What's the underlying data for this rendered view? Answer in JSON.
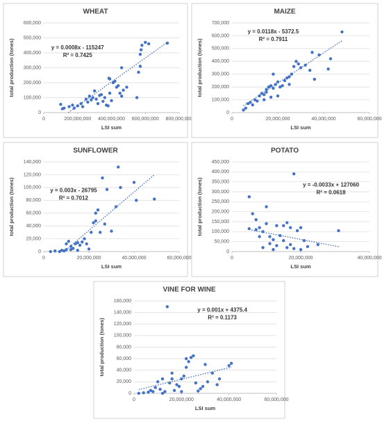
{
  "chart_data": [
    {
      "type": "scatter",
      "title": "WHEAT",
      "x_label": "LSI sum",
      "y_label": "total production (tones)",
      "color": "#4472c4",
      "grid": true,
      "annotations": [
        "y = 0.0008x - 115247",
        "R² = 0.7425"
      ],
      "xlim": [
        0,
        800000000
      ],
      "xticks": [
        0,
        {
          "value": 200000000,
          "label": "200,000,000"
        },
        {
          "value": 400000000,
          "label": "400,000,000"
        },
        {
          "value": 600000000,
          "label": "600,000,000"
        },
        {
          "value": 800000000,
          "label": "800,000,000"
        }
      ],
      "ylim": [
        0,
        600000
      ],
      "yticks": [
        0,
        {
          "value": 100000,
          "label": "100,000"
        },
        {
          "value": 200000,
          "label": "200,000"
        },
        {
          "value": 300000,
          "label": "300,000"
        },
        {
          "value": 400000,
          "label": "400,000"
        },
        {
          "value": 500000,
          "label": "500,000"
        },
        {
          "value": 600000,
          "label": "600,000"
        }
      ],
      "x": [
        100000000,
        110000000,
        120000000,
        150000000,
        170000000,
        180000000,
        200000000,
        220000000,
        230000000,
        250000000,
        260000000,
        270000000,
        280000000,
        290000000,
        300000000,
        310000000,
        320000000,
        330000000,
        340000000,
        350000000,
        360000000,
        370000000,
        380000000,
        390000000,
        400000000,
        410000000,
        420000000,
        430000000,
        440000000,
        450000000,
        460000000,
        460000000,
        470000000,
        490000000,
        550000000,
        560000000,
        570000000,
        570000000,
        575000000,
        580000000,
        600000000,
        620000000,
        730000000,
        390000000,
        385000000
      ],
      "values": [
        55000,
        25000,
        30000,
        40000,
        50000,
        30000,
        45000,
        60000,
        40000,
        90000,
        70000,
        110000,
        85000,
        100000,
        145000,
        90000,
        60000,
        115000,
        120000,
        75000,
        100000,
        50000,
        45000,
        130000,
        80000,
        200000,
        210000,
        170000,
        180000,
        130000,
        110000,
        300000,
        150000,
        170000,
        100000,
        270000,
        310000,
        390000,
        420000,
        450000,
        470000,
        460000,
        465000,
        225000,
        230000
      ],
      "trendline": {
        "x": [
          145000000,
          730000000
        ],
        "y": [
          0,
          470000
        ]
      }
    },
    {
      "type": "scatter",
      "title": "MAIZE",
      "x_label": "LSI sum",
      "y_label": "total production (tones)",
      "color": "#4472c4",
      "grid": true,
      "annotations": [
        "y = 0.0118x - 5372.5",
        "R² = 0.7911"
      ],
      "xlim": [
        0,
        60000000
      ],
      "xticks": [
        0,
        {
          "value": 20000000,
          "label": "20,000,000"
        },
        {
          "value": 40000000,
          "label": "40,000,000"
        },
        {
          "value": 60000000,
          "label": "60,000,000"
        }
      ],
      "ylim": [
        0,
        700000
      ],
      "yticks": [
        0,
        {
          "value": 100000,
          "label": "100,000"
        },
        {
          "value": 200000,
          "label": "200,000"
        },
        {
          "value": 300000,
          "label": "300,000"
        },
        {
          "value": 400000,
          "label": "400,000"
        },
        {
          "value": 500000,
          "label": "500,000"
        },
        {
          "value": 600000,
          "label": "600,000"
        },
        {
          "value": 700000,
          "label": "700,000"
        }
      ],
      "x": [
        5000000,
        6000000,
        7000000,
        8000000,
        9000000,
        10000000,
        11000000,
        12000000,
        13000000,
        14000000,
        15000000,
        16000000,
        17000000,
        18000000,
        18000000,
        19000000,
        20000000,
        20000000,
        21000000,
        22000000,
        23000000,
        24000000,
        25000000,
        25000000,
        26000000,
        27000000,
        28000000,
        29000000,
        30000000,
        32000000,
        34000000,
        35000000,
        36000000,
        38000000,
        42000000,
        43000000,
        48000000,
        17000000,
        15000000,
        14000000
      ],
      "values": [
        20000,
        35000,
        70000,
        80000,
        60000,
        100000,
        90000,
        130000,
        150000,
        100000,
        180000,
        200000,
        210000,
        300000,
        190000,
        220000,
        130000,
        240000,
        200000,
        210000,
        250000,
        270000,
        280000,
        220000,
        300000,
        360000,
        400000,
        380000,
        350000,
        370000,
        330000,
        470000,
        260000,
        450000,
        340000,
        420000,
        630000,
        120000,
        160000,
        140000
      ],
      "trendline": {
        "x": [
          5000000,
          48000000
        ],
        "y": [
          53600,
          561000
        ]
      }
    },
    {
      "type": "scatter",
      "title": "SUNFLOWER",
      "x_label": "LSI sum",
      "y_label": "total production (tones)",
      "color": "#4472c4",
      "grid": true,
      "annotations": [
        "y = 0.003x - 26795",
        "R² = 0.7012"
      ],
      "xlim": [
        0,
        60000000
      ],
      "xticks": [
        0,
        {
          "value": 20000000,
          "label": "20,000,000"
        },
        {
          "value": 40000000,
          "label": "40,000,000"
        },
        {
          "value": 60000000,
          "label": "60,000,000"
        }
      ],
      "ylim": [
        0,
        140000
      ],
      "yticks": [
        0,
        {
          "value": 20000,
          "label": "20,000"
        },
        {
          "value": 40000,
          "label": "40,000"
        },
        {
          "value": 60000,
          "label": "60,000"
        },
        {
          "value": 80000,
          "label": "80,000"
        },
        {
          "value": 100000,
          "label": "100,000"
        },
        {
          "value": 120000,
          "label": "120,000"
        },
        {
          "value": 140000,
          "label": "140,000"
        }
      ],
      "x": [
        3000000,
        5000000,
        7000000,
        8000000,
        9000000,
        10000000,
        10000000,
        11000000,
        12000000,
        12000000,
        13000000,
        14000000,
        15000000,
        16000000,
        17000000,
        18000000,
        19000000,
        20000000,
        21000000,
        22000000,
        23000000,
        23000000,
        24000000,
        25000000,
        26000000,
        27000000,
        28000000,
        30000000,
        32000000,
        33000000,
        34000000,
        40000000,
        41000000,
        49000000,
        15000000
      ],
      "values": [
        0,
        1000,
        0,
        2000,
        1000,
        3000,
        12000,
        16000,
        8000,
        3000,
        5000,
        12000,
        14000,
        10000,
        15000,
        20000,
        12000,
        4000,
        30000,
        45000,
        48000,
        60000,
        65000,
        30000,
        115000,
        43000,
        97000,
        32000,
        70000,
        132000,
        100000,
        108000,
        80000,
        82000,
        2000
      ],
      "trendline": {
        "x": [
          9000000,
          49000000
        ],
        "y": [
          0,
          120000
        ]
      }
    },
    {
      "type": "scatter",
      "title": "POTATO",
      "x_label": "LSI sum",
      "y_label": "total production (tones)",
      "color": "#4472c4",
      "grid": true,
      "annotations": [
        "y = -0.0033x + 127060",
        "R² = 0.0618"
      ],
      "xlim": [
        0,
        40000000
      ],
      "xticks": [
        0,
        {
          "value": 20000000,
          "label": "20,000,000"
        },
        {
          "value": 40000000,
          "label": "40,000,000"
        }
      ],
      "ylim": [
        0,
        450000
      ],
      "yticks": [
        0,
        {
          "value": 50000,
          "label": "50,000"
        },
        {
          "value": 100000,
          "label": "100,000"
        },
        {
          "value": 150000,
          "label": "150,000"
        },
        {
          "value": 200000,
          "label": "200,000"
        },
        {
          "value": 250000,
          "label": "250,000"
        },
        {
          "value": 300000,
          "label": "300,000"
        },
        {
          "value": 350000,
          "label": "350,000"
        },
        {
          "value": 400000,
          "label": "400,000"
        },
        {
          "value": 450000,
          "label": "450,000"
        }
      ],
      "x": [
        5000000,
        5000000,
        6000000,
        7000000,
        7000000,
        8000000,
        8000000,
        9000000,
        10000000,
        10000000,
        11000000,
        11000000,
        12000000,
        12000000,
        13000000,
        14000000,
        15000000,
        15000000,
        16000000,
        16000000,
        17000000,
        17000000,
        18000000,
        18000000,
        19000000,
        20000000,
        20000000,
        21000000,
        22000000,
        25000000,
        31000000,
        13000000,
        9000000
      ],
      "values": [
        115000,
        275000,
        190000,
        160000,
        110000,
        120000,
        75000,
        100000,
        225000,
        140000,
        75000,
        40000,
        10000,
        60000,
        30000,
        80000,
        55000,
        130000,
        145000,
        20000,
        35000,
        120000,
        390000,
        15000,
        105000,
        10000,
        120000,
        55000,
        25000,
        35000,
        105000,
        130000,
        20000
      ],
      "trendline": {
        "x": [
          5000000,
          31000000
        ],
        "y": [
          110500,
          24700
        ]
      }
    },
    {
      "type": "scatter",
      "title": "VINE FOR WINE",
      "x_label": "LSI sum",
      "y_label": "total production (tones)",
      "color": "#4472c4",
      "grid": true,
      "annotations": [
        "y = 0.001x + 4375.4",
        "R² = 0.1173"
      ],
      "xlim": [
        0,
        60000000
      ],
      "xticks": [
        0,
        {
          "value": 20000000,
          "label": "20,000,000"
        },
        {
          "value": 40000000,
          "label": "40,000,000"
        },
        {
          "value": 60000000,
          "label": "60,000,000"
        }
      ],
      "ylim": [
        0,
        160000
      ],
      "yticks": [
        0,
        {
          "value": 20000,
          "label": "20,000"
        },
        {
          "value": 40000,
          "label": "40,000"
        },
        {
          "value": 60000,
          "label": "60,000"
        },
        {
          "value": 80000,
          "label": "80,000"
        },
        {
          "value": 100000,
          "label": "100,000"
        },
        {
          "value": 120000,
          "label": "120,000"
        },
        {
          "value": 140000,
          "label": "140,000"
        },
        {
          "value": 160000,
          "label": "160,000"
        }
      ],
      "x": [
        2000000,
        4000000,
        6000000,
        7000000,
        8000000,
        9000000,
        10000000,
        11000000,
        12000000,
        13000000,
        14000000,
        15000000,
        16000000,
        16000000,
        17000000,
        18000000,
        19000000,
        20000000,
        21000000,
        22000000,
        22000000,
        23000000,
        24000000,
        25000000,
        26000000,
        27000000,
        28000000,
        29000000,
        30000000,
        31000000,
        33000000,
        35000000,
        36000000,
        41000000,
        40000000,
        12000000,
        20000000
      ],
      "values": [
        0,
        1000,
        2000,
        5000,
        3000,
        10000,
        20000,
        7000,
        25000,
        3000,
        150000,
        18000,
        35000,
        25000,
        5000,
        15000,
        12000,
        25000,
        30000,
        60000,
        45000,
        55000,
        62000,
        65000,
        18000,
        4000,
        8000,
        12000,
        50000,
        20000,
        35000,
        15000,
        25000,
        52000,
        48000,
        0,
        3000
      ],
      "trendline": {
        "x": [
          2000000,
          41000000
        ],
        "y": [
          6400,
          45400
        ]
      }
    }
  ]
}
